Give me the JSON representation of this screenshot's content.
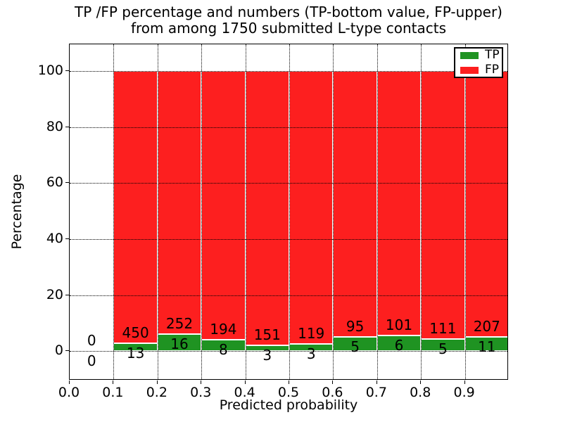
{
  "title": {
    "line1": "TP /FP percentage and numbers (TP-bottom value, FP-upper)",
    "line2": "from among 1750 submitted L-type contacts"
  },
  "x_axis": {
    "label": "Predicted probability",
    "tick_values": [
      0.0,
      0.1,
      0.2,
      0.3,
      0.4,
      0.5,
      0.6,
      0.7,
      0.8,
      0.9
    ],
    "tick_labels": [
      "0.0",
      "0.1",
      "0.2",
      "0.3",
      "0.4",
      "0.5",
      "0.6",
      "0.7",
      "0.8",
      "0.9"
    ]
  },
  "y_axis": {
    "label": "Percentage",
    "tick_values": [
      0,
      20,
      40,
      60,
      80,
      100
    ],
    "tick_labels": [
      "0",
      "20",
      "40",
      "60",
      "80",
      "100"
    ]
  },
  "legend": {
    "position": "upper right",
    "entries": [
      {
        "label": "TP",
        "color": "#1f9322"
      },
      {
        "label": "FP",
        "color": "#fd1f1f"
      }
    ]
  },
  "chart_data": {
    "type": "bar",
    "subtype": "stacked-percentage",
    "title": "TP /FP percentage and numbers (TP-bottom value, FP-upper) from among 1750 submitted L-type contacts",
    "xlabel": "Predicted probability",
    "ylabel": "Percentage",
    "xlim": [
      0.0,
      1.0
    ],
    "ylim": [
      -10.5,
      109.5
    ],
    "grid": "dotted black",
    "legend_position": "upper right",
    "total_submitted": 1750,
    "series": [
      {
        "name": "TP",
        "color": "#1f9322",
        "stack_order": "bottom"
      },
      {
        "name": "FP",
        "color": "#fd1f1f",
        "stack_order": "top"
      }
    ],
    "bins": [
      {
        "range": [
          0.0,
          0.1
        ],
        "tp": 0,
        "fp": 0
      },
      {
        "range": [
          0.1,
          0.2
        ],
        "tp": 13,
        "fp": 450
      },
      {
        "range": [
          0.2,
          0.3
        ],
        "tp": 16,
        "fp": 252
      },
      {
        "range": [
          0.3,
          0.4
        ],
        "tp": 8,
        "fp": 194
      },
      {
        "range": [
          0.4,
          0.5
        ],
        "tp": 3,
        "fp": 151
      },
      {
        "range": [
          0.5,
          0.6
        ],
        "tp": 3,
        "fp": 119
      },
      {
        "range": [
          0.6,
          0.7
        ],
        "tp": 5,
        "fp": 95
      },
      {
        "range": [
          0.7,
          0.8
        ],
        "tp": 6,
        "fp": 101
      },
      {
        "range": [
          0.8,
          0.9
        ],
        "tp": 5,
        "fp": 111
      },
      {
        "range": [
          0.9,
          1.0
        ],
        "tp": 11,
        "fp": 207
      }
    ]
  }
}
